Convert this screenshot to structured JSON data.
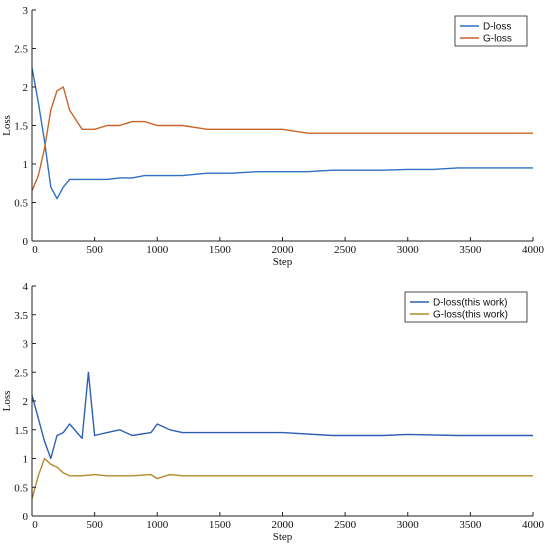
{
  "chart_data": [
    {
      "type": "line",
      "title": "",
      "xlabel": "Step",
      "ylabel": "Loss",
      "xlim": [
        0,
        4000
      ],
      "ylim": [
        0,
        3
      ],
      "xticks": [
        0,
        500,
        1000,
        1500,
        2000,
        2500,
        3000,
        3500,
        4000
      ],
      "yticks": [
        0,
        0.5,
        1,
        1.5,
        2,
        2.5,
        3
      ],
      "ytick_labels": [
        "0",
        "0.5",
        "1",
        "1.5",
        "2",
        "2.5",
        "3"
      ],
      "legend_position": "top-right",
      "grid": false,
      "series": [
        {
          "name": "D-loss",
          "color": "#2e6fc4",
          "x": [
            0,
            50,
            100,
            150,
            200,
            250,
            300,
            400,
            500,
            600,
            700,
            800,
            900,
            1000,
            1200,
            1400,
            1600,
            1800,
            2000,
            2200,
            2400,
            2600,
            2800,
            3000,
            3200,
            3400,
            3600,
            3800,
            4000
          ],
          "values": [
            2.25,
            1.8,
            1.3,
            0.7,
            0.55,
            0.7,
            0.8,
            0.8,
            0.8,
            0.8,
            0.82,
            0.82,
            0.85,
            0.85,
            0.85,
            0.88,
            0.88,
            0.9,
            0.9,
            0.9,
            0.92,
            0.92,
            0.92,
            0.93,
            0.93,
            0.95,
            0.95,
            0.95,
            0.95
          ]
        },
        {
          "name": "G-loss",
          "color": "#c8642a",
          "x": [
            0,
            50,
            100,
            150,
            200,
            250,
            300,
            400,
            500,
            600,
            700,
            800,
            900,
            1000,
            1200,
            1400,
            1600,
            1800,
            2000,
            2200,
            2400,
            2600,
            2800,
            3000,
            3200,
            3400,
            3600,
            3800,
            4000
          ],
          "values": [
            0.65,
            0.85,
            1.2,
            1.7,
            1.95,
            2.0,
            1.7,
            1.45,
            1.45,
            1.5,
            1.5,
            1.55,
            1.55,
            1.5,
            1.5,
            1.45,
            1.45,
            1.45,
            1.45,
            1.4,
            1.4,
            1.4,
            1.4,
            1.4,
            1.4,
            1.4,
            1.4,
            1.4,
            1.4
          ]
        }
      ]
    },
    {
      "type": "line",
      "title": "",
      "xlabel": "Step",
      "ylabel": "Loss",
      "xlim": [
        0,
        4000
      ],
      "ylim": [
        0,
        4
      ],
      "xticks": [
        0,
        500,
        1000,
        1500,
        2000,
        2500,
        3000,
        3500,
        4000
      ],
      "yticks": [
        0,
        0.5,
        1,
        1.5,
        2,
        2.5,
        3,
        3.5,
        4
      ],
      "ytick_labels": [
        "0",
        "0.5",
        "1",
        "1.5",
        "2",
        "2.5",
        "3",
        "3.5",
        "4"
      ],
      "legend_position": "top-right",
      "grid": false,
      "series": [
        {
          "name": "D-loss(this work)",
          "color": "#2e5fb4",
          "x": [
            0,
            50,
            100,
            150,
            200,
            250,
            300,
            400,
            450,
            500,
            600,
            700,
            800,
            950,
            1000,
            1100,
            1200,
            1500,
            1800,
            2000,
            2400,
            2800,
            3000,
            3400,
            3800,
            4000
          ],
          "values": [
            2.1,
            1.7,
            1.3,
            1.0,
            1.4,
            1.45,
            1.6,
            1.35,
            2.5,
            1.4,
            1.45,
            1.5,
            1.4,
            1.45,
            1.6,
            1.5,
            1.45,
            1.45,
            1.45,
            1.45,
            1.4,
            1.4,
            1.42,
            1.4,
            1.4,
            1.4
          ]
        },
        {
          "name": "G-loss(this work)",
          "color": "#b38a2c",
          "x": [
            0,
            50,
            100,
            150,
            200,
            250,
            300,
            400,
            500,
            600,
            700,
            800,
            950,
            1000,
            1100,
            1200,
            1500,
            1800,
            2000,
            2400,
            2800,
            3000,
            3400,
            3800,
            4000
          ],
          "values": [
            0.3,
            0.7,
            1.0,
            0.9,
            0.85,
            0.75,
            0.7,
            0.7,
            0.72,
            0.7,
            0.7,
            0.7,
            0.72,
            0.65,
            0.72,
            0.7,
            0.7,
            0.7,
            0.7,
            0.7,
            0.7,
            0.7,
            0.7,
            0.7,
            0.7
          ]
        }
      ]
    }
  ]
}
